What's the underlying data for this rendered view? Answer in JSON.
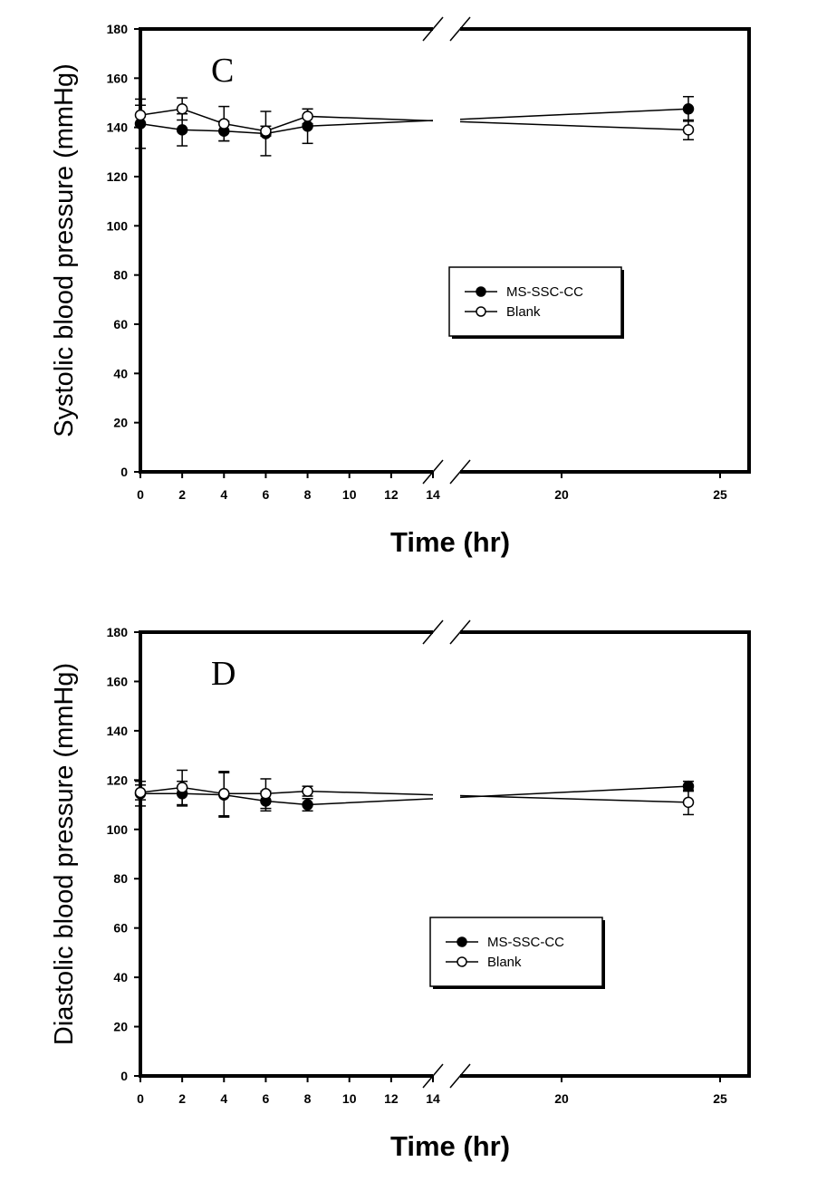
{
  "chart_data": [
    {
      "type": "line",
      "panel_label": "C",
      "ylabel": "Systolic blood pressure (mmHg)",
      "xlabel": "Time (hr)",
      "ylim": [
        0,
        180
      ],
      "yticks": [
        0,
        20,
        40,
        60,
        80,
        100,
        120,
        140,
        160,
        180
      ],
      "xticks_left": [
        0,
        2,
        4,
        6,
        8,
        10,
        12,
        14
      ],
      "xticks_right": [
        20,
        25
      ],
      "axis_break": "between 14 and ~16",
      "grid": false,
      "legend_position": "center-right",
      "series": [
        {
          "name": "MS-SSC-CC",
          "marker": "filled-circle",
          "x": [
            0,
            2,
            4,
            6,
            8,
            24
          ],
          "y": [
            141.5,
            139,
            138.5,
            137.5,
            140.5,
            147.5
          ],
          "error": [
            10,
            6.5,
            4,
            9,
            7,
            5
          ]
        },
        {
          "name": "Blank",
          "marker": "open-circle",
          "x": [
            0,
            2,
            4,
            6,
            8,
            24
          ],
          "y": [
            145,
            147.5,
            141.5,
            138.5,
            144.5,
            139
          ],
          "error": [
            4,
            4.5,
            7,
            2,
            3,
            4
          ]
        }
      ]
    },
    {
      "type": "line",
      "panel_label": "D",
      "ylabel": "Diastolic blood pressure (mmHg)",
      "xlabel": "Time (hr)",
      "ylim": [
        0,
        180
      ],
      "yticks": [
        0,
        20,
        40,
        60,
        80,
        100,
        120,
        140,
        160,
        180
      ],
      "xticks_left": [
        0,
        2,
        4,
        6,
        8,
        10,
        12,
        14
      ],
      "xticks_right": [
        20,
        25
      ],
      "axis_break": "between 14 and ~16",
      "grid": false,
      "legend_position": "center-right",
      "series": [
        {
          "name": "MS-SSC-CC",
          "marker": "filled-circle",
          "x": [
            0,
            2,
            4,
            6,
            8,
            24
          ],
          "y": [
            114.5,
            114.5,
            114,
            111.5,
            110,
            117.5
          ],
          "error": [
            5,
            5,
            9,
            4,
            2.5,
            2
          ]
        },
        {
          "name": "Blank",
          "marker": "open-circle",
          "x": [
            0,
            2,
            4,
            6,
            8,
            24
          ],
          "y": [
            115,
            117,
            114.5,
            114.5,
            115.5,
            111
          ],
          "error": [
            3,
            7,
            9,
            6,
            2,
            5
          ]
        }
      ]
    }
  ]
}
